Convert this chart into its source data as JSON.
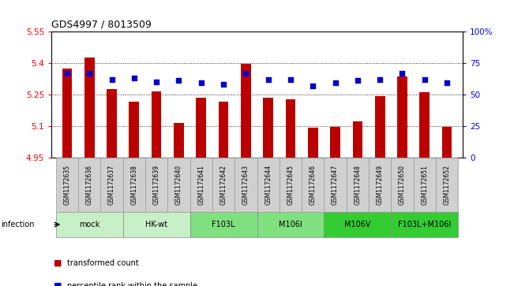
{
  "title": "GDS4997 / 8013509",
  "samples": [
    "GSM1172635",
    "GSM1172636",
    "GSM1172637",
    "GSM1172638",
    "GSM1172639",
    "GSM1172640",
    "GSM1172641",
    "GSM1172642",
    "GSM1172643",
    "GSM1172644",
    "GSM1172645",
    "GSM1172646",
    "GSM1172647",
    "GSM1172648",
    "GSM1172649",
    "GSM1172650",
    "GSM1172651",
    "GSM1172652"
  ],
  "bar_values": [
    5.375,
    5.425,
    5.275,
    5.215,
    5.265,
    5.115,
    5.235,
    5.215,
    5.395,
    5.235,
    5.225,
    5.09,
    5.095,
    5.12,
    5.24,
    5.335,
    5.26,
    5.095
  ],
  "percentile_values": [
    67,
    67,
    62,
    63,
    60,
    61,
    59,
    58,
    67,
    62,
    62,
    57,
    59,
    61,
    62,
    67,
    62,
    59
  ],
  "groups": [
    {
      "label": "mock",
      "start": 0,
      "end": 2,
      "color": "#c8f0c8"
    },
    {
      "label": "HK-wt",
      "start": 3,
      "end": 5,
      "color": "#c8f0c8"
    },
    {
      "label": "F103L",
      "start": 6,
      "end": 8,
      "color": "#80e080"
    },
    {
      "label": "M106I",
      "start": 9,
      "end": 11,
      "color": "#80e080"
    },
    {
      "label": "M106V",
      "start": 12,
      "end": 14,
      "color": "#33cc33"
    },
    {
      "label": "F103L+M106I",
      "start": 15,
      "end": 17,
      "color": "#33cc33"
    }
  ],
  "ylim_left": [
    4.95,
    5.55
  ],
  "ylim_right": [
    0,
    100
  ],
  "yticks_left": [
    4.95,
    5.1,
    5.25,
    5.4,
    5.55
  ],
  "ytick_labels_left": [
    "4.95",
    "5.1",
    "5.25",
    "5.4",
    "5.55"
  ],
  "yticks_right": [
    0,
    25,
    50,
    75,
    100
  ],
  "ytick_labels_right": [
    "0",
    "25",
    "50",
    "75",
    "100%"
  ],
  "bar_color": "#bb0000",
  "percentile_color": "#0000cc",
  "bar_width": 0.45,
  "infection_label": "infection",
  "legend_bar_label": "transformed count",
  "legend_dot_label": "percentile rank within the sample",
  "sample_box_color": "#d0d0d0",
  "sample_box_edge": "#999999"
}
